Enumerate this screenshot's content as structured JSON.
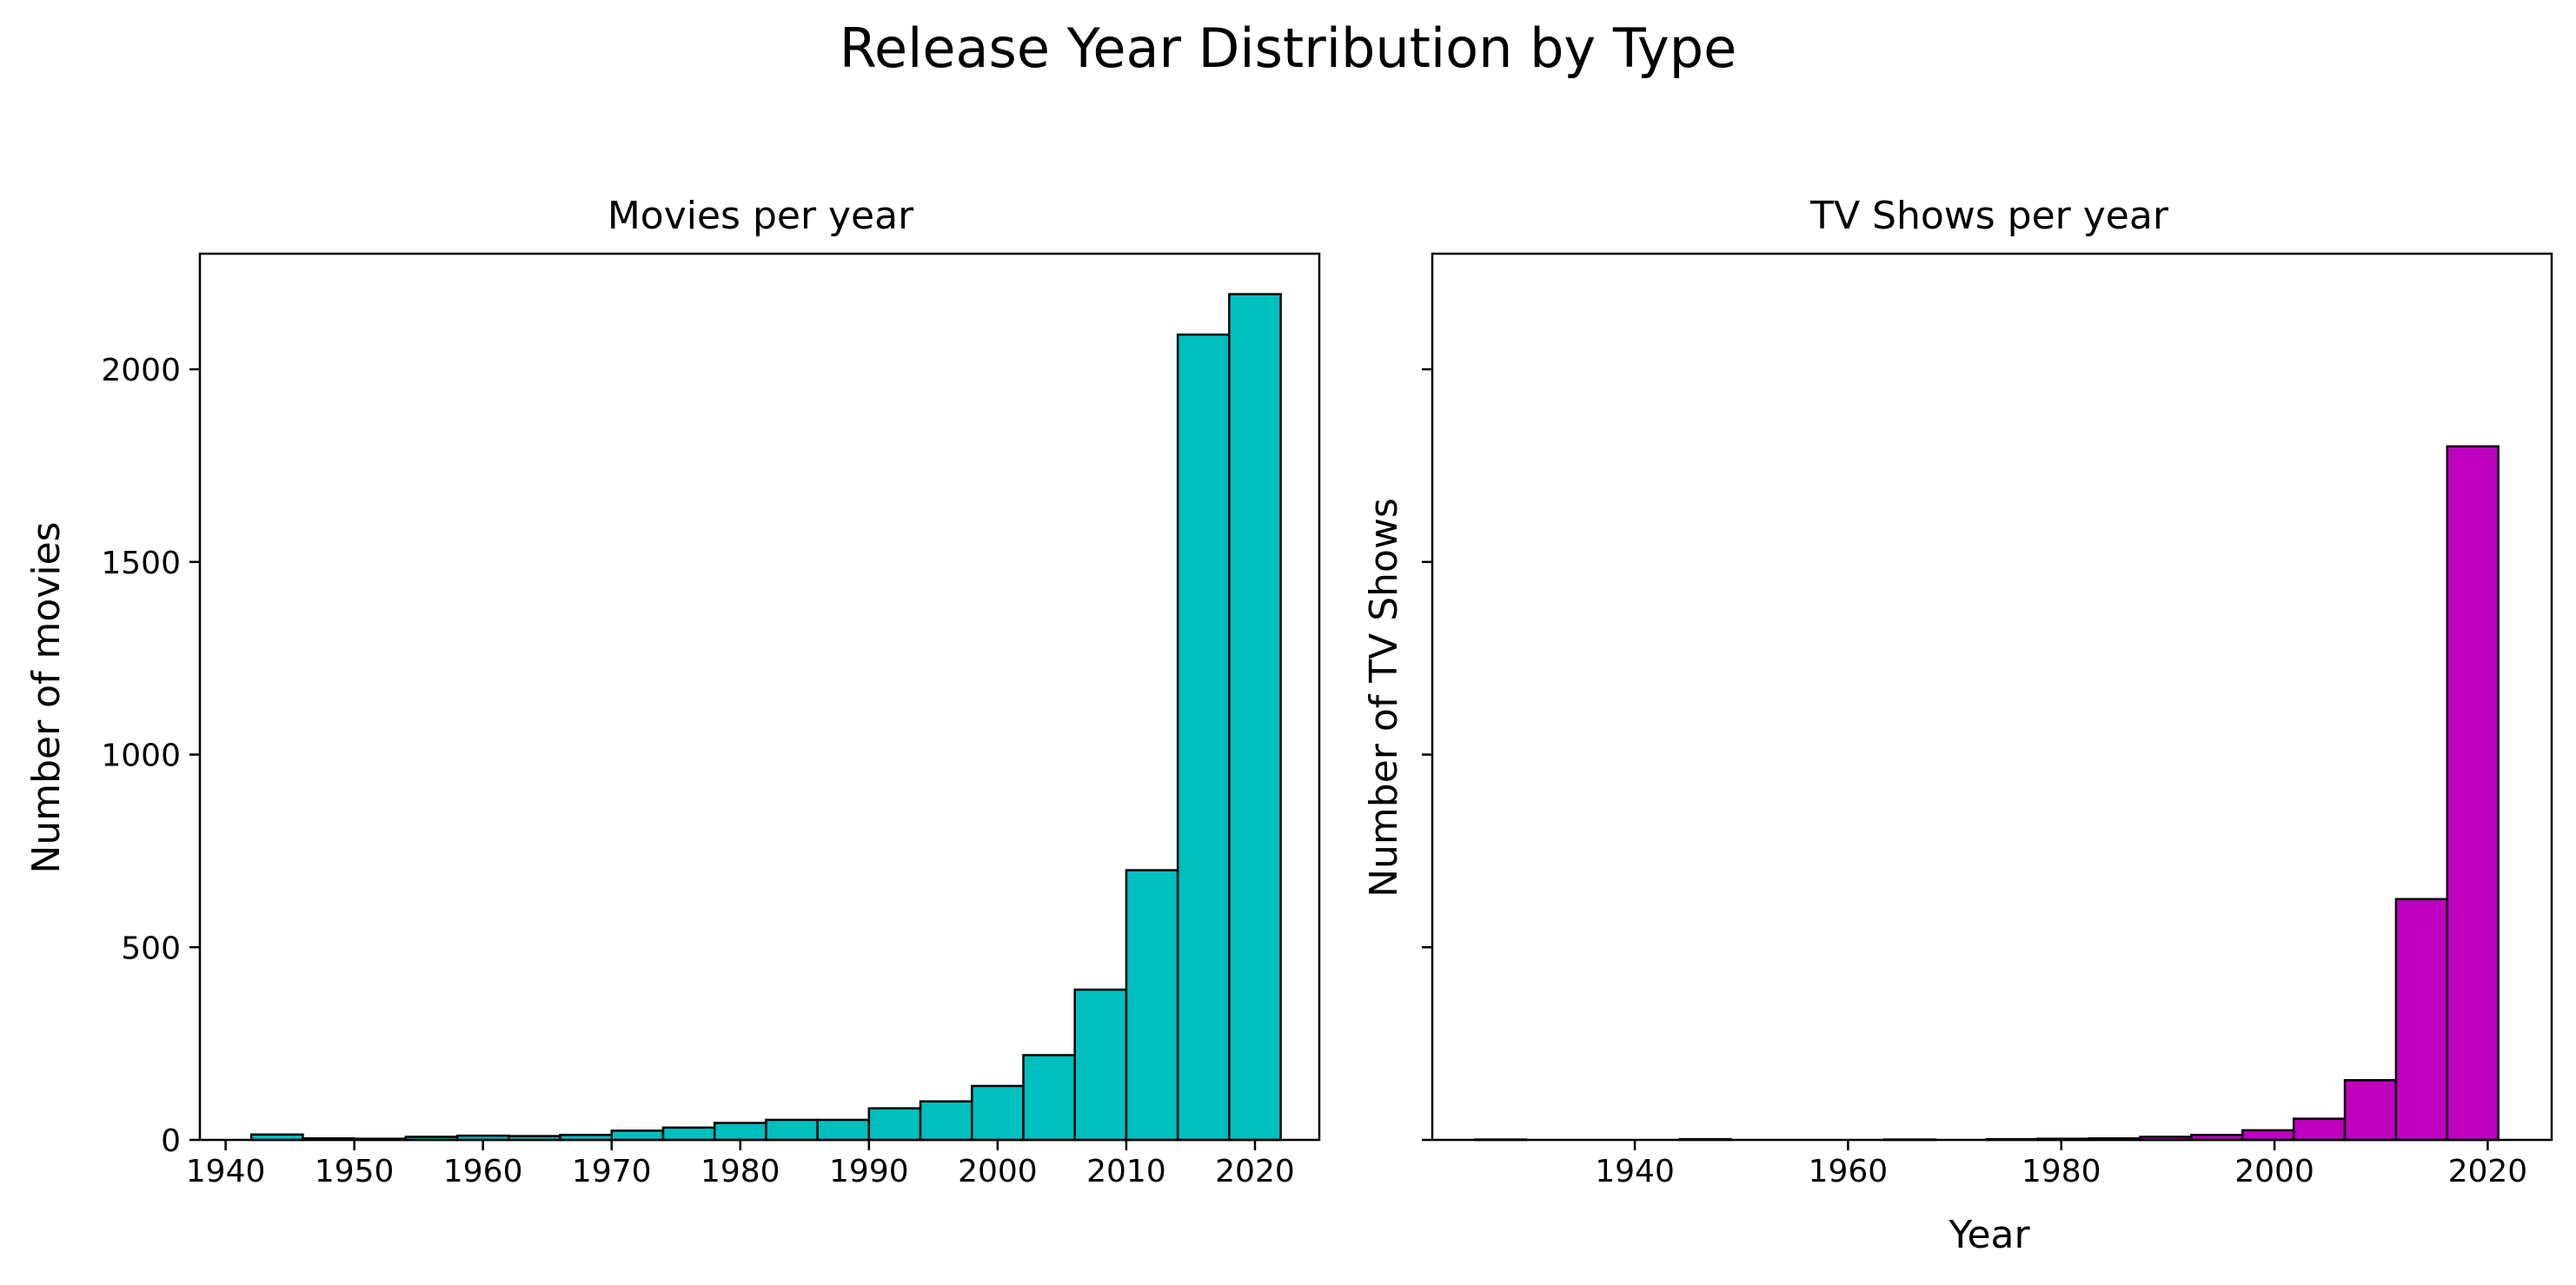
{
  "figure": {
    "title": "Release Year Distribution by Type"
  },
  "chart_data": [
    {
      "type": "bar",
      "title": "Movies per year",
      "xlabel": "",
      "ylabel": "Number of movies",
      "xlim": [
        1938,
        2025
      ],
      "ylim": [
        0,
        2300
      ],
      "xticks": [
        1940,
        1950,
        1960,
        1970,
        1980,
        1990,
        2000,
        2010,
        2020
      ],
      "yticks": [
        0,
        500,
        1000,
        1500,
        2000
      ],
      "show_y_tick_labels": true,
      "color": "#00bfbf",
      "edgecolor": "#000000",
      "grid": false,
      "bins": [
        {
          "x0": 1942.0,
          "x1": 1946.0,
          "value": 14
        },
        {
          "x0": 1946.0,
          "x1": 1950.0,
          "value": 4
        },
        {
          "x0": 1950.0,
          "x1": 1954.0,
          "value": 3
        },
        {
          "x0": 1954.0,
          "x1": 1958.0,
          "value": 8
        },
        {
          "x0": 1958.0,
          "x1": 1962.0,
          "value": 11
        },
        {
          "x0": 1962.0,
          "x1": 1966.0,
          "value": 10
        },
        {
          "x0": 1966.0,
          "x1": 1970.0,
          "value": 13
        },
        {
          "x0": 1970.0,
          "x1": 1974.0,
          "value": 24
        },
        {
          "x0": 1974.0,
          "x1": 1978.0,
          "value": 32
        },
        {
          "x0": 1978.0,
          "x1": 1982.0,
          "value": 44
        },
        {
          "x0": 1982.0,
          "x1": 1986.0,
          "value": 52
        },
        {
          "x0": 1986.0,
          "x1": 1990.0,
          "value": 52
        },
        {
          "x0": 1990.0,
          "x1": 1994.0,
          "value": 82
        },
        {
          "x0": 1994.0,
          "x1": 1998.0,
          "value": 100
        },
        {
          "x0": 1998.0,
          "x1": 2002.0,
          "value": 140
        },
        {
          "x0": 2002.0,
          "x1": 2006.0,
          "value": 220
        },
        {
          "x0": 2006.0,
          "x1": 2010.0,
          "value": 390
        },
        {
          "x0": 2010.0,
          "x1": 2014.0,
          "value": 700
        },
        {
          "x0": 2014.0,
          "x1": 2018.0,
          "value": 2090
        },
        {
          "x0": 2018.0,
          "x1": 2022.0,
          "value": 2195
        }
      ]
    },
    {
      "type": "bar",
      "title": "TV Shows per year",
      "xlabel": "Year",
      "ylabel": "Number of TV Shows",
      "xlim": [
        1921,
        2026
      ],
      "ylim": [
        0,
        2300
      ],
      "xticks": [
        1940,
        1960,
        1980,
        2000,
        2020
      ],
      "yticks": [
        0,
        500,
        1000,
        1500,
        2000
      ],
      "show_y_tick_labels": false,
      "color": "#bf00bf",
      "edgecolor": "#000000",
      "grid": false,
      "bins": [
        {
          "x0": 1925.0,
          "x1": 1929.8,
          "value": 1
        },
        {
          "x0": 1929.8,
          "x1": 1934.6,
          "value": 0
        },
        {
          "x0": 1934.6,
          "x1": 1939.4,
          "value": 0
        },
        {
          "x0": 1939.4,
          "x1": 1944.2,
          "value": 0
        },
        {
          "x0": 1944.2,
          "x1": 1949.0,
          "value": 2
        },
        {
          "x0": 1949.0,
          "x1": 1953.8,
          "value": 0
        },
        {
          "x0": 1953.8,
          "x1": 1958.6,
          "value": 0
        },
        {
          "x0": 1958.6,
          "x1": 1963.4,
          "value": 0
        },
        {
          "x0": 1963.4,
          "x1": 1968.2,
          "value": 1
        },
        {
          "x0": 1968.2,
          "x1": 1973.0,
          "value": 0
        },
        {
          "x0": 1973.0,
          "x1": 1977.8,
          "value": 2
        },
        {
          "x0": 1977.8,
          "x1": 1982.6,
          "value": 3
        },
        {
          "x0": 1982.6,
          "x1": 1987.4,
          "value": 4
        },
        {
          "x0": 1987.4,
          "x1": 1992.2,
          "value": 8
        },
        {
          "x0": 1992.2,
          "x1": 1997.0,
          "value": 13
        },
        {
          "x0": 1997.0,
          "x1": 2001.8,
          "value": 25
        },
        {
          "x0": 2001.8,
          "x1": 2006.6,
          "value": 55
        },
        {
          "x0": 2006.6,
          "x1": 2011.4,
          "value": 155
        },
        {
          "x0": 2011.4,
          "x1": 2016.2,
          "value": 625
        },
        {
          "x0": 2016.2,
          "x1": 2021.0,
          "value": 1800
        }
      ]
    }
  ]
}
